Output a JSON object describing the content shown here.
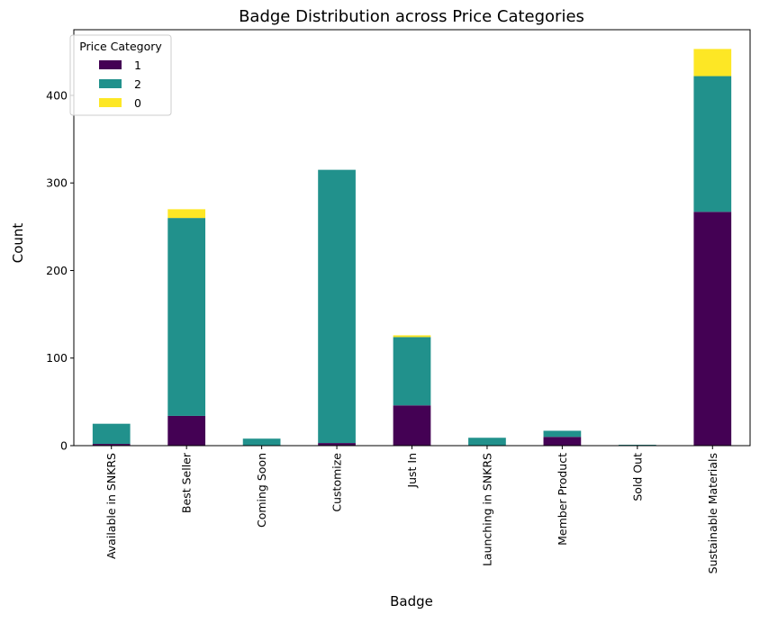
{
  "chart_data": {
    "type": "bar",
    "stacked": true,
    "title": "Badge Distribution across Price Categories",
    "xlabel": "Badge",
    "ylabel": "Count",
    "ylim": [
      0,
      475
    ],
    "yticks": [
      0,
      100,
      200,
      300,
      400
    ],
    "categories": [
      "Available in SNKRS",
      "Best Seller",
      "Coming Soon",
      "Customize",
      "Just In",
      "Launching in SNKRS",
      "Member Product",
      "Sold Out",
      "Sustainable Materials"
    ],
    "series": [
      {
        "name": "1",
        "color": "#440154",
        "values": [
          2,
          34,
          0,
          3,
          46,
          0,
          10,
          0,
          267
        ]
      },
      {
        "name": "2",
        "color": "#21918c",
        "values": [
          23,
          226,
          8,
          312,
          78,
          9,
          7,
          1,
          155
        ]
      },
      {
        "name": "0",
        "color": "#fde725",
        "values": [
          0,
          10,
          0,
          0,
          2,
          0,
          0,
          0,
          31
        ]
      }
    ],
    "legend": {
      "title": "Price Category",
      "position": "top-left"
    },
    "grid": false
  }
}
